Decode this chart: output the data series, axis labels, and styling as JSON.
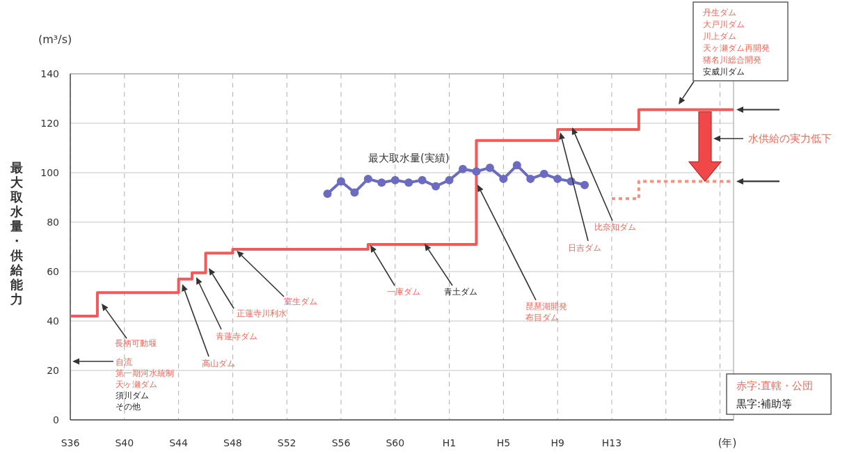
{
  "chart_data": {
    "type": "line",
    "xlabel": "(年)",
    "ylabel": "最大取水量・供給能力",
    "categories": [
      "S36",
      null,
      null,
      null,
      "S40",
      null,
      null,
      null,
      "S44",
      null,
      null,
      null,
      "S48",
      null,
      null,
      null,
      "S52",
      null,
      null,
      null,
      "S56",
      null,
      null,
      null,
      "S60",
      null,
      null,
      null,
      "H1",
      null,
      null,
      null,
      "H5",
      null,
      null,
      null,
      "H9",
      null,
      null,
      null,
      "H13",
      null,
      null,
      null,
      null,
      null,
      null,
      null,
      null,
      null
    ],
    "ylim": [
      0,
      140
    ],
    "yticks": [
      0,
      20,
      40,
      60,
      80,
      100,
      120,
      140
    ],
    "grid": true,
    "series": [
      {
        "type": "step",
        "color": "#f25a5a",
        "values": [
          42,
          42,
          51.5,
          51.5,
          51.5,
          51.5,
          51.5,
          51.5,
          57,
          59.5,
          67.5,
          67.5,
          69,
          69,
          69,
          69,
          69,
          69,
          69,
          69,
          69,
          69,
          71,
          71,
          71,
          71,
          71,
          71,
          71,
          71,
          113,
          113,
          113,
          113,
          113,
          113,
          117.5,
          117.5,
          117.5,
          117.5,
          117.5,
          117.5,
          125.5,
          125.5,
          125.5,
          125.5,
          125.5,
          125.5,
          125.5,
          125.5
        ]
      },
      {
        "type": "step",
        "color": "#f5907c",
        "line_style": "dotted",
        "values": [
          null,
          null,
          null,
          null,
          null,
          null,
          null,
          null,
          null,
          null,
          null,
          null,
          null,
          null,
          null,
          null,
          null,
          null,
          null,
          null,
          null,
          null,
          null,
          null,
          null,
          null,
          null,
          null,
          null,
          null,
          null,
          null,
          null,
          null,
          null,
          null,
          null,
          null,
          null,
          null,
          89.5,
          89.5,
          96.5,
          96.5,
          96.5,
          96.5,
          96.5,
          96.5,
          96.5,
          96.5
        ]
      },
      {
        "name": "最大取水量(実績)",
        "color": "#6b6bbf",
        "marker": "circle",
        "values": [
          null,
          null,
          null,
          null,
          null,
          null,
          null,
          null,
          null,
          null,
          null,
          null,
          null,
          null,
          null,
          null,
          null,
          null,
          null,
          91.5,
          96.5,
          92,
          97.5,
          96,
          97,
          96,
          97,
          94.5,
          97,
          101.5,
          100.5,
          102,
          97.5,
          103,
          97.5,
          99.5,
          97.5,
          96.5,
          95,
          null,
          null,
          null,
          null,
          null,
          null,
          null,
          null,
          null,
          null,
          null
        ]
      }
    ],
    "annotations": [
      "長柄可動堰",
      "自流",
      "第一期河水統制",
      "天ヶ瀬ダム",
      "須川ダム",
      "その他",
      "高山ダム",
      "青蓮寺ダム",
      "正蓮寺川利水",
      "室生ダム",
      "一庫ダム",
      "青土ダム",
      "琵琶湖開発",
      "布目ダム",
      "日吉ダム",
      "比奈知ダム",
      "丹生ダム",
      "大戸川ダム",
      "川上ダム",
      "天ヶ瀬ダム再開発",
      "猪名川総合開発",
      "安威川ダム",
      "水供給の実力低下",
      "(m³/s)",
      "赤字:直轄・公団",
      "黒字:補助等"
    ]
  }
}
